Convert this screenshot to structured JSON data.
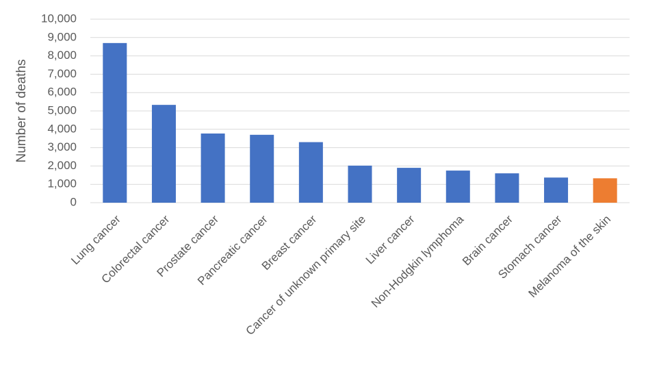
{
  "chart_data": {
    "type": "bar",
    "y_label": "Number of deaths",
    "categories": [
      "Lung cancer",
      "Colorectal cancer",
      "Prostate cancer",
      "Pancreatic cancer",
      "Breast cancer",
      "Cancer of unknown primary site",
      "Liver cancer",
      "Non-Hodgkin lymphoma",
      "Brain cancer",
      "Stomach cancer",
      "Melanoma of the skin"
    ],
    "values": [
      8700,
      5330,
      3770,
      3700,
      3300,
      2020,
      1900,
      1750,
      1600,
      1370,
      1330
    ],
    "colors": [
      "#4472c4",
      "#4472c4",
      "#4472c4",
      "#4472c4",
      "#4472c4",
      "#4472c4",
      "#4472c4",
      "#4472c4",
      "#4472c4",
      "#4472c4",
      "#ed7d31"
    ],
    "ylim": [
      0,
      10000
    ],
    "yticks": [
      0,
      {
        "value": 1000,
        "label": "1,000"
      },
      {
        "value": 2000,
        "label": "2,000"
      },
      {
        "value": 3000,
        "label": "3,000"
      },
      {
        "value": 4000,
        "label": "4,000"
      },
      {
        "value": 5000,
        "label": "5,000"
      },
      {
        "value": 6000,
        "label": "6,000"
      },
      {
        "value": 7000,
        "label": "7,000"
      },
      {
        "value": 8000,
        "label": "8,000"
      },
      {
        "value": 9000,
        "label": "9,000"
      },
      {
        "value": 10000,
        "label": "10,000"
      }
    ],
    "grid": true
  }
}
